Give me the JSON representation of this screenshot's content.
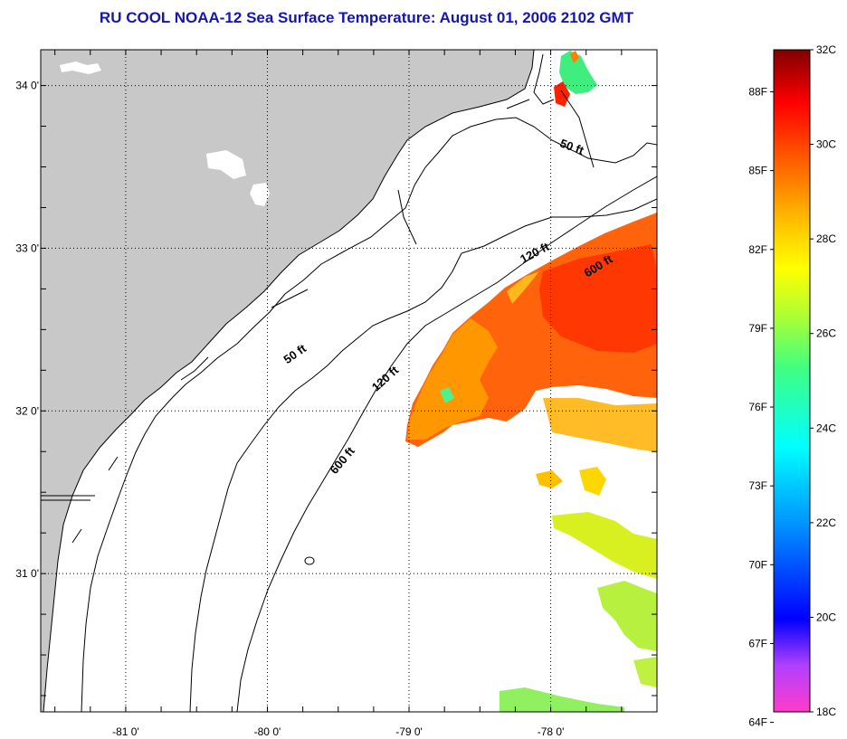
{
  "title": "RU COOL  NOAA-12  Sea Surface Temperature:  August 01, 2006 2102 GMT",
  "map": {
    "lon_range": [
      -81.6,
      -77.25
    ],
    "lat_range": [
      30.15,
      34.22
    ],
    "lon_ticks": [
      {
        "value": -81,
        "label": "-81 0'"
      },
      {
        "value": -80,
        "label": "-80 0'"
      },
      {
        "value": -79,
        "label": "-79 0'"
      },
      {
        "value": -78,
        "label": "-78 0'"
      }
    ],
    "lat_ticks": [
      {
        "value": 34,
        "label": "34 0'"
      },
      {
        "value": 33,
        "label": "33 0'"
      },
      {
        "value": 32,
        "label": "32 0'"
      },
      {
        "value": 31,
        "label": "31 0'"
      }
    ],
    "land_color": "#c8c8c8",
    "contour_labels": [
      {
        "text": "50 ft",
        "lon": -77.86,
        "lat": 33.6,
        "rotate": 20
      },
      {
        "text": "50 ft",
        "lon": -79.79,
        "lat": 32.33,
        "rotate": -35
      },
      {
        "text": "120 ft",
        "lon": -78.1,
        "lat": 32.95,
        "rotate": -28
      },
      {
        "text": "120 ft",
        "lon": -79.15,
        "lat": 32.18,
        "rotate": -42
      },
      {
        "text": "600 ft",
        "lon": -77.65,
        "lat": 32.87,
        "rotate": -32
      },
      {
        "text": "600 ft",
        "lon": -79.45,
        "lat": 31.68,
        "rotate": -50
      }
    ]
  },
  "colorbar": {
    "units_left": "F",
    "units_right": "C",
    "range_c": [
      18,
      32
    ],
    "labels_f": [
      "88F",
      "85F",
      "82F",
      "79F",
      "76F",
      "73F",
      "70F",
      "67F",
      "64F"
    ],
    "values_f": [
      88,
      85,
      82,
      79,
      76,
      73,
      70,
      67,
      64
    ],
    "labels_c": [
      "32C",
      "30C",
      "28C",
      "26C",
      "24C",
      "22C",
      "20C",
      "18C"
    ],
    "values_c": [
      32,
      30,
      28,
      26,
      24,
      22,
      20,
      18
    ]
  }
}
